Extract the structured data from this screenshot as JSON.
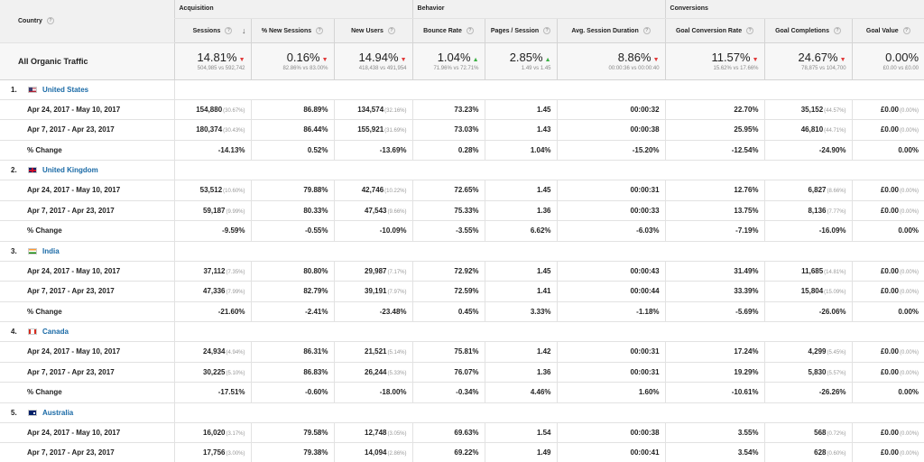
{
  "header": {
    "country_label": "Country",
    "groups": [
      "Acquisition",
      "Behavior",
      "Conversions"
    ],
    "columns": [
      "Sessions",
      "% New Sessions",
      "New Users",
      "Bounce Rate",
      "Pages / Session",
      "Avg. Session Duration",
      "Goal Conversion Rate",
      "Goal Completions",
      "Goal Value"
    ]
  },
  "summary": {
    "label": "All Organic Traffic",
    "cells": [
      {
        "big": "14.81%",
        "dir": "down",
        "sub": "504,985 vs 592,742"
      },
      {
        "big": "0.16%",
        "dir": "down",
        "sub": "82.86% vs 83.00%"
      },
      {
        "big": "14.94%",
        "dir": "down",
        "sub": "418,438 vs 491,954"
      },
      {
        "big": "1.04%",
        "dir": "up",
        "sub": "71.96% vs 72.71%"
      },
      {
        "big": "2.85%",
        "dir": "up",
        "sub": "1.49 vs 1.45"
      },
      {
        "big": "8.86%",
        "dir": "down",
        "sub": "00:00:36 vs 00:00:40"
      },
      {
        "big": "11.57%",
        "dir": "down",
        "sub": "15.62% vs 17.66%"
      },
      {
        "big": "24.67%",
        "dir": "down",
        "sub": "78,875 vs 104,700"
      },
      {
        "big": "0.00%",
        "dir": "none",
        "sub": "£0.00 vs £0.00"
      }
    ]
  },
  "countries": [
    {
      "num": "1.",
      "name": "United States",
      "flag": "us",
      "rows": [
        {
          "label": "Apr 24, 2017 - May 10, 2017",
          "cells": [
            [
              "154,880",
              "(30.67%)"
            ],
            [
              "86.89%"
            ],
            [
              "134,574",
              "(32.16%)"
            ],
            [
              "73.23%"
            ],
            [
              "1.45"
            ],
            [
              "00:00:32"
            ],
            [
              "22.70%"
            ],
            [
              "35,152",
              "(44.57%)"
            ],
            [
              "£0.00",
              "(0.00%)"
            ]
          ]
        },
        {
          "label": "Apr 7, 2017 - Apr 23, 2017",
          "cells": [
            [
              "180,374",
              "(30.43%)"
            ],
            [
              "86.44%"
            ],
            [
              "155,921",
              "(31.69%)"
            ],
            [
              "73.03%"
            ],
            [
              "1.43"
            ],
            [
              "00:00:38"
            ],
            [
              "25.95%"
            ],
            [
              "46,810",
              "(44.71%)"
            ],
            [
              "£0.00",
              "(0.00%)"
            ]
          ]
        },
        {
          "label": "% Change",
          "cells": [
            [
              "-14.13%"
            ],
            [
              "0.52%"
            ],
            [
              "-13.69%"
            ],
            [
              "0.28%"
            ],
            [
              "1.04%"
            ],
            [
              "-15.20%"
            ],
            [
              "-12.54%"
            ],
            [
              "-24.90%"
            ],
            [
              "0.00%"
            ]
          ]
        }
      ]
    },
    {
      "num": "2.",
      "name": "United Kingdom",
      "flag": "uk",
      "rows": [
        {
          "label": "Apr 24, 2017 - May 10, 2017",
          "cells": [
            [
              "53,512",
              "(10.60%)"
            ],
            [
              "79.88%"
            ],
            [
              "42,746",
              "(10.22%)"
            ],
            [
              "72.65%"
            ],
            [
              "1.45"
            ],
            [
              "00:00:31"
            ],
            [
              "12.76%"
            ],
            [
              "6,827",
              "(8.66%)"
            ],
            [
              "£0.00",
              "(0.00%)"
            ]
          ]
        },
        {
          "label": "Apr 7, 2017 - Apr 23, 2017",
          "cells": [
            [
              "59,187",
              "(9.99%)"
            ],
            [
              "80.33%"
            ],
            [
              "47,543",
              "(9.66%)"
            ],
            [
              "75.33%"
            ],
            [
              "1.36"
            ],
            [
              "00:00:33"
            ],
            [
              "13.75%"
            ],
            [
              "8,136",
              "(7.77%)"
            ],
            [
              "£0.00",
              "(0.00%)"
            ]
          ]
        },
        {
          "label": "% Change",
          "cells": [
            [
              "-9.59%"
            ],
            [
              "-0.55%"
            ],
            [
              "-10.09%"
            ],
            [
              "-3.55%"
            ],
            [
              "6.62%"
            ],
            [
              "-6.03%"
            ],
            [
              "-7.19%"
            ],
            [
              "-16.09%"
            ],
            [
              "0.00%"
            ]
          ]
        }
      ]
    },
    {
      "num": "3.",
      "name": "India",
      "flag": "in",
      "rows": [
        {
          "label": "Apr 24, 2017 - May 10, 2017",
          "cells": [
            [
              "37,112",
              "(7.35%)"
            ],
            [
              "80.80%"
            ],
            [
              "29,987",
              "(7.17%)"
            ],
            [
              "72.92%"
            ],
            [
              "1.45"
            ],
            [
              "00:00:43"
            ],
            [
              "31.49%"
            ],
            [
              "11,685",
              "(14.81%)"
            ],
            [
              "£0.00",
              "(0.00%)"
            ]
          ]
        },
        {
          "label": "Apr 7, 2017 - Apr 23, 2017",
          "cells": [
            [
              "47,336",
              "(7.99%)"
            ],
            [
              "82.79%"
            ],
            [
              "39,191",
              "(7.97%)"
            ],
            [
              "72.59%"
            ],
            [
              "1.41"
            ],
            [
              "00:00:44"
            ],
            [
              "33.39%"
            ],
            [
              "15,804",
              "(15.09%)"
            ],
            [
              "£0.00",
              "(0.00%)"
            ]
          ]
        },
        {
          "label": "% Change",
          "cells": [
            [
              "-21.60%"
            ],
            [
              "-2.41%"
            ],
            [
              "-23.48%"
            ],
            [
              "0.45%"
            ],
            [
              "3.33%"
            ],
            [
              "-1.18%"
            ],
            [
              "-5.69%"
            ],
            [
              "-26.06%"
            ],
            [
              "0.00%"
            ]
          ]
        }
      ]
    },
    {
      "num": "4.",
      "name": "Canada",
      "flag": "ca",
      "rows": [
        {
          "label": "Apr 24, 2017 - May 10, 2017",
          "cells": [
            [
              "24,934",
              "(4.94%)"
            ],
            [
              "86.31%"
            ],
            [
              "21,521",
              "(5.14%)"
            ],
            [
              "75.81%"
            ],
            [
              "1.42"
            ],
            [
              "00:00:31"
            ],
            [
              "17.24%"
            ],
            [
              "4,299",
              "(5.45%)"
            ],
            [
              "£0.00",
              "(0.00%)"
            ]
          ]
        },
        {
          "label": "Apr 7, 2017 - Apr 23, 2017",
          "cells": [
            [
              "30,225",
              "(5.10%)"
            ],
            [
              "86.83%"
            ],
            [
              "26,244",
              "(5.33%)"
            ],
            [
              "76.07%"
            ],
            [
              "1.36"
            ],
            [
              "00:00:31"
            ],
            [
              "19.29%"
            ],
            [
              "5,830",
              "(5.57%)"
            ],
            [
              "£0.00",
              "(0.00%)"
            ]
          ]
        },
        {
          "label": "% Change",
          "cells": [
            [
              "-17.51%"
            ],
            [
              "-0.60%"
            ],
            [
              "-18.00%"
            ],
            [
              "-0.34%"
            ],
            [
              "4.46%"
            ],
            [
              "1.60%"
            ],
            [
              "-10.61%"
            ],
            [
              "-26.26%"
            ],
            [
              "0.00%"
            ]
          ]
        }
      ]
    },
    {
      "num": "5.",
      "name": "Australia",
      "flag": "au",
      "rows": [
        {
          "label": "Apr 24, 2017 - May 10, 2017",
          "cells": [
            [
              "16,020",
              "(3.17%)"
            ],
            [
              "79.58%"
            ],
            [
              "12,748",
              "(3.05%)"
            ],
            [
              "69.63%"
            ],
            [
              "1.54"
            ],
            [
              "00:00:38"
            ],
            [
              "3.55%"
            ],
            [
              "568",
              "(0.72%)"
            ],
            [
              "£0.00",
              "(0.00%)"
            ]
          ]
        },
        {
          "label": "Apr 7, 2017 - Apr 23, 2017",
          "cells": [
            [
              "17,756",
              "(3.00%)"
            ],
            [
              "79.38%"
            ],
            [
              "14,094",
              "(2.86%)"
            ],
            [
              "69.22%"
            ],
            [
              "1.49"
            ],
            [
              "00:00:41"
            ],
            [
              "3.54%"
            ],
            [
              "628",
              "(0.60%)"
            ],
            [
              "£0.00",
              "(0.00%)"
            ]
          ]
        }
      ]
    }
  ]
}
